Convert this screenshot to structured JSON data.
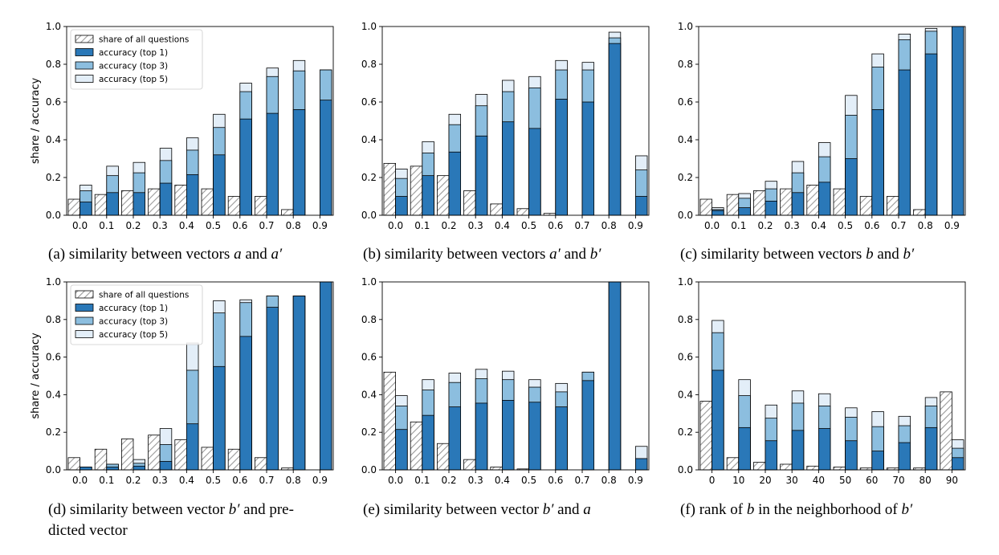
{
  "colors": {
    "share_hatch": "#a6a6a6",
    "share_bg": "#ffffff",
    "top1": "#2a78b8",
    "top3": "#8cbedf",
    "top5": "#e3eef8",
    "edge": "#000000"
  },
  "legend": {
    "items": [
      {
        "label": "share of all questions",
        "swatch": "share"
      },
      {
        "label": "accuracy (top 1)",
        "swatch": "top1"
      },
      {
        "label": "accuracy (top 3)",
        "swatch": "top3"
      },
      {
        "label": "accuracy (top 5)",
        "swatch": "top5"
      }
    ]
  },
  "chart_data": [
    {
      "type": "bar",
      "caption": [
        {
          "t": "(a) similarity between vectors "
        },
        {
          "t": "a",
          "i": true
        },
        {
          "t": " and "
        },
        {
          "t": "a′",
          "i": true
        }
      ],
      "ylabel": "share / accuracy",
      "legend": true,
      "ylim": [
        0,
        1.0
      ],
      "yticks": [
        "0.0",
        "0.2",
        "0.4",
        "0.6",
        "0.8",
        "1.0"
      ],
      "categories": [
        "0.0",
        "0.1",
        "0.2",
        "0.3",
        "0.4",
        "0.5",
        "0.6",
        "0.7",
        "0.8",
        "0.9"
      ],
      "series": [
        {
          "name": "share of all questions",
          "values": [
            0.085,
            0.11,
            0.13,
            0.14,
            0.16,
            0.14,
            0.1,
            0.1,
            0.03,
            0.0
          ]
        },
        {
          "name": "accuracy (top 1)",
          "values": [
            0.07,
            0.12,
            0.12,
            0.17,
            0.215,
            0.32,
            0.51,
            0.54,
            0.56,
            0.61
          ]
        },
        {
          "name": "accuracy (top 3)",
          "values": [
            0.13,
            0.21,
            0.225,
            0.29,
            0.345,
            0.465,
            0.655,
            0.735,
            0.765,
            0.77
          ]
        },
        {
          "name": "accuracy (top 5)",
          "values": [
            0.16,
            0.26,
            0.28,
            0.355,
            0.41,
            0.535,
            0.7,
            0.78,
            0.82,
            0.77
          ]
        }
      ]
    },
    {
      "type": "bar",
      "caption": [
        {
          "t": "(b) similarity between vectors "
        },
        {
          "t": "a′",
          "i": true
        },
        {
          "t": " and "
        },
        {
          "t": "b′",
          "i": true
        }
      ],
      "ylabel": "",
      "legend": false,
      "ylim": [
        0,
        1.0
      ],
      "yticks": [
        "0.0",
        "0.2",
        "0.4",
        "0.6",
        "0.8",
        "1.0"
      ],
      "categories": [
        "0.0",
        "0.1",
        "0.2",
        "0.3",
        "0.4",
        "0.5",
        "0.6",
        "0.7",
        "0.8",
        "0.9"
      ],
      "series": [
        {
          "name": "share of all questions",
          "values": [
            0.275,
            0.26,
            0.21,
            0.13,
            0.06,
            0.035,
            0.01,
            0.0,
            0.0,
            0.0
          ]
        },
        {
          "name": "accuracy (top 1)",
          "values": [
            0.1,
            0.21,
            0.335,
            0.42,
            0.495,
            0.46,
            0.615,
            0.6,
            0.91,
            0.1
          ]
        },
        {
          "name": "accuracy (top 3)",
          "values": [
            0.195,
            0.33,
            0.48,
            0.58,
            0.655,
            0.675,
            0.77,
            0.77,
            0.94,
            0.24
          ]
        },
        {
          "name": "accuracy (top 5)",
          "values": [
            0.245,
            0.39,
            0.535,
            0.64,
            0.715,
            0.735,
            0.82,
            0.81,
            0.97,
            0.315
          ]
        }
      ]
    },
    {
      "type": "bar",
      "caption": [
        {
          "t": "(c) similarity between vectors "
        },
        {
          "t": "b",
          "i": true
        },
        {
          "t": " and "
        },
        {
          "t": "b′",
          "i": true
        }
      ],
      "ylabel": "",
      "legend": false,
      "ylim": [
        0,
        1.0
      ],
      "yticks": [
        "0.0",
        "0.2",
        "0.4",
        "0.6",
        "0.8",
        "1.0"
      ],
      "categories": [
        "0.0",
        "0.1",
        "0.2",
        "0.3",
        "0.4",
        "0.5",
        "0.6",
        "0.7",
        "0.8",
        "0.9"
      ],
      "series": [
        {
          "name": "share of all questions",
          "values": [
            0.085,
            0.11,
            0.13,
            0.14,
            0.16,
            0.14,
            0.1,
            0.1,
            0.03,
            0.0
          ]
        },
        {
          "name": "accuracy (top 1)",
          "values": [
            0.025,
            0.04,
            0.075,
            0.12,
            0.175,
            0.3,
            0.56,
            0.77,
            0.855,
            1.0
          ]
        },
        {
          "name": "accuracy (top 3)",
          "values": [
            0.03,
            0.09,
            0.14,
            0.225,
            0.31,
            0.53,
            0.785,
            0.93,
            0.975,
            1.0
          ]
        },
        {
          "name": "accuracy (top 5)",
          "values": [
            0.04,
            0.115,
            0.18,
            0.285,
            0.385,
            0.635,
            0.855,
            0.96,
            0.99,
            1.0
          ]
        }
      ]
    },
    {
      "type": "bar",
      "caption": [
        {
          "t": "(d) similarity between vector "
        },
        {
          "t": "b′",
          "i": true
        },
        {
          "t": " and pre-"
        }
      ],
      "caption2": [
        {
          "t": "dicted vector"
        }
      ],
      "ylabel": "share / accuracy",
      "legend": true,
      "ylim": [
        0,
        1.0
      ],
      "yticks": [
        "0.0",
        "0.2",
        "0.4",
        "0.6",
        "0.8",
        "1.0"
      ],
      "categories": [
        "0.0",
        "0.1",
        "0.2",
        "0.3",
        "0.4",
        "0.5",
        "0.6",
        "0.7",
        "0.8",
        "0.9"
      ],
      "series": [
        {
          "name": "share of all questions",
          "values": [
            0.065,
            0.11,
            0.165,
            0.185,
            0.16,
            0.12,
            0.11,
            0.065,
            0.01,
            0.0
          ]
        },
        {
          "name": "accuracy (top 1)",
          "values": [
            0.015,
            0.015,
            0.02,
            0.045,
            0.245,
            0.55,
            0.71,
            0.865,
            0.925,
            1.0
          ]
        },
        {
          "name": "accuracy (top 3)",
          "values": [
            0.015,
            0.03,
            0.035,
            0.135,
            0.53,
            0.835,
            0.89,
            0.925,
            0.925,
            1.0
          ]
        },
        {
          "name": "accuracy (top 5)",
          "values": [
            0.015,
            0.03,
            0.055,
            0.22,
            0.675,
            0.9,
            0.905,
            0.925,
            0.925,
            1.0
          ]
        }
      ]
    },
    {
      "type": "bar",
      "caption": [
        {
          "t": "(e) similarity between vector "
        },
        {
          "t": "b′",
          "i": true
        },
        {
          "t": " and "
        },
        {
          "t": "a",
          "i": true
        }
      ],
      "ylabel": "",
      "legend": false,
      "ylim": [
        0,
        1.0
      ],
      "yticks": [
        "0.0",
        "0.2",
        "0.4",
        "0.6",
        "0.8",
        "1.0"
      ],
      "categories": [
        "0.0",
        "0.1",
        "0.2",
        "0.3",
        "0.4",
        "0.5",
        "0.6",
        "0.7",
        "0.8",
        "0.9"
      ],
      "series": [
        {
          "name": "share of all questions",
          "values": [
            0.52,
            0.255,
            0.14,
            0.055,
            0.015,
            0.005,
            0.0,
            0.0,
            0.0,
            0.0
          ]
        },
        {
          "name": "accuracy (top 1)",
          "values": [
            0.215,
            0.29,
            0.335,
            0.355,
            0.37,
            0.36,
            0.335,
            0.475,
            1.0,
            0.06
          ]
        },
        {
          "name": "accuracy (top 3)",
          "values": [
            0.34,
            0.425,
            0.465,
            0.485,
            0.48,
            0.44,
            0.415,
            0.52,
            1.0,
            0.06
          ]
        },
        {
          "name": "accuracy (top 5)",
          "values": [
            0.395,
            0.48,
            0.515,
            0.535,
            0.525,
            0.48,
            0.46,
            0.52,
            1.0,
            0.125
          ]
        }
      ]
    },
    {
      "type": "bar",
      "caption": [
        {
          "t": "(f) rank of "
        },
        {
          "t": "b",
          "i": true
        },
        {
          "t": " in the neighborhood of "
        },
        {
          "t": "b′",
          "i": true
        }
      ],
      "ylabel": "",
      "legend": false,
      "ylim": [
        0,
        1.0
      ],
      "yticks": [
        "0.0",
        "0.2",
        "0.4",
        "0.6",
        "0.8",
        "1.0"
      ],
      "categories": [
        "0",
        "10",
        "20",
        "30",
        "40",
        "50",
        "60",
        "70",
        "80",
        "90"
      ],
      "series": [
        {
          "name": "share of all questions",
          "values": [
            0.365,
            0.065,
            0.04,
            0.03,
            0.02,
            0.015,
            0.01,
            0.01,
            0.01,
            0.415
          ]
        },
        {
          "name": "accuracy (top 1)",
          "values": [
            0.53,
            0.225,
            0.155,
            0.21,
            0.22,
            0.155,
            0.1,
            0.145,
            0.225,
            0.065
          ]
        },
        {
          "name": "accuracy (top 3)",
          "values": [
            0.73,
            0.395,
            0.275,
            0.355,
            0.34,
            0.28,
            0.23,
            0.235,
            0.34,
            0.115
          ]
        },
        {
          "name": "accuracy (top 5)",
          "values": [
            0.795,
            0.48,
            0.345,
            0.42,
            0.405,
            0.33,
            0.31,
            0.285,
            0.385,
            0.16
          ]
        }
      ]
    }
  ]
}
